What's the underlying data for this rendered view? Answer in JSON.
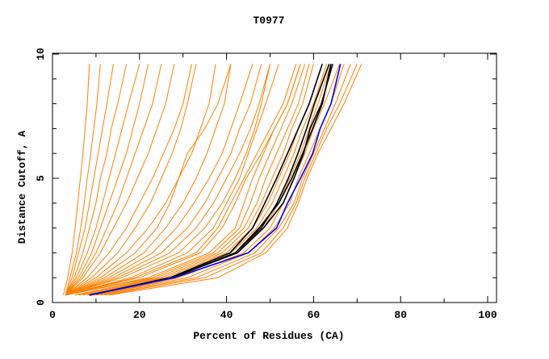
{
  "chart_data": {
    "type": "line",
    "title": "T0977",
    "xlabel": "Percent of Residues (CA)",
    "ylabel": "Distance Cutoff, A",
    "xlim": [
      0,
      102
    ],
    "ylim": [
      0,
      10
    ],
    "x_ticks": [
      "0",
      "20",
      "40",
      "60",
      "80",
      "100"
    ],
    "y_ticks": [
      "0",
      "5",
      "10"
    ],
    "grid": false,
    "colors": {
      "models": "#ff8000",
      "highlight": "#000000",
      "best": "#0000ff"
    },
    "y_cutoffs": [
      0.3,
      1,
      2,
      3,
      4,
      5,
      6,
      7,
      8,
      9.6
    ],
    "orange_series_x": [
      [
        2.5,
        3.5,
        4.5,
        5.2,
        5.8,
        6.4,
        7,
        7.5,
        8,
        8.5
      ],
      [
        3,
        4,
        5.5,
        6.5,
        7.3,
        8,
        8.8,
        9.5,
        10.2,
        11
      ],
      [
        3,
        4.5,
        6,
        7.5,
        8.5,
        9.5,
        10.5,
        11.5,
        12.5,
        14
      ],
      [
        3,
        5,
        7,
        8.5,
        10,
        11,
        12.5,
        13.5,
        15,
        17
      ],
      [
        3,
        5.5,
        8,
        10,
        11.5,
        13,
        14.5,
        16,
        17.5,
        20
      ],
      [
        3,
        6,
        9,
        11,
        13,
        15,
        17,
        18.5,
        20,
        22
      ],
      [
        3,
        6.5,
        10,
        12.5,
        15,
        17,
        19,
        21,
        23,
        25
      ],
      [
        3,
        7,
        11,
        14,
        17,
        19.5,
        22,
        24,
        26,
        28
      ],
      [
        3,
        8,
        13,
        17,
        20,
        23,
        25.5,
        28,
        30,
        32
      ],
      [
        3,
        9,
        15,
        19,
        22.5,
        25,
        27.5,
        29.5,
        31,
        33
      ],
      [
        3,
        10,
        17,
        22,
        26,
        29,
        32,
        34,
        36,
        37.5
      ],
      [
        3,
        11,
        19,
        24,
        27,
        29,
        31,
        35,
        38,
        41
      ],
      [
        3,
        12,
        21,
        26,
        30,
        33,
        35.5,
        37.5,
        39.5,
        41
      ],
      [
        3,
        13,
        23,
        28.5,
        32.5,
        36,
        39,
        41,
        43,
        46
      ],
      [
        3,
        14,
        25,
        31,
        35,
        38,
        41,
        43,
        45.5,
        48
      ],
      [
        3,
        15,
        27,
        33,
        37,
        40,
        43,
        45.5,
        47.5,
        50
      ],
      [
        3,
        16,
        29,
        35,
        39,
        42,
        44.5,
        46.5,
        48,
        50
      ],
      [
        3,
        18,
        31,
        37,
        40,
        43,
        45,
        47,
        49,
        52
      ],
      [
        3,
        19,
        33,
        38,
        41,
        44,
        47,
        50,
        53,
        56
      ],
      [
        3,
        20,
        34,
        39,
        42,
        44.5,
        48,
        51,
        54,
        57
      ],
      [
        3,
        22,
        36,
        42,
        44,
        46,
        48.5,
        51,
        54,
        57
      ],
      [
        3,
        23,
        37,
        43,
        45.5,
        47.5,
        50,
        52.5,
        55,
        58
      ],
      [
        5,
        24,
        38,
        44,
        47,
        49,
        51.5,
        54,
        56.5,
        59
      ],
      [
        6,
        25,
        39,
        45,
        48,
        50.5,
        53,
        55,
        57.5,
        60
      ],
      [
        7,
        26,
        40,
        46,
        49.5,
        52,
        54.5,
        56.5,
        59,
        62
      ],
      [
        8,
        27,
        41,
        47,
        50.5,
        53,
        55.5,
        57.5,
        60,
        63
      ],
      [
        9,
        28,
        42,
        48.5,
        52,
        54.5,
        57,
        59,
        61,
        64
      ],
      [
        10,
        29,
        44,
        50,
        53,
        55.5,
        58,
        60,
        62.5,
        66
      ],
      [
        10,
        31,
        45,
        51,
        54.5,
        56.5,
        59,
        61.5,
        64,
        67
      ],
      [
        11,
        33,
        46.5,
        52,
        55.5,
        57.5,
        60,
        62.5,
        65,
        68.5
      ],
      [
        12,
        35,
        48,
        53,
        56,
        58,
        60.5,
        63,
        66,
        70
      ],
      [
        13,
        38,
        49,
        54,
        56.5,
        58.5,
        61,
        64,
        67,
        71
      ]
    ],
    "black_series_x": [
      [
        8.5,
        27,
        40.8,
        46,
        48.8,
        51.5,
        54,
        56.5,
        59,
        62
      ],
      [
        8.5,
        27.5,
        42,
        48,
        51.6,
        54.2,
        56.4,
        58.4,
        60.2,
        63.6
      ],
      [
        8.5,
        27.5,
        42.5,
        48.5,
        53,
        55.5,
        57.7,
        59.2,
        61.8,
        64.4
      ],
      [
        8.5,
        27.5,
        42,
        47.5,
        52,
        55,
        57.5,
        59.8,
        62,
        64
      ]
    ],
    "blue_series_x": [
      8.5,
      28,
      45,
      51.5,
      54,
      57,
      59.8,
      61.5,
      64,
      66.2
    ]
  }
}
